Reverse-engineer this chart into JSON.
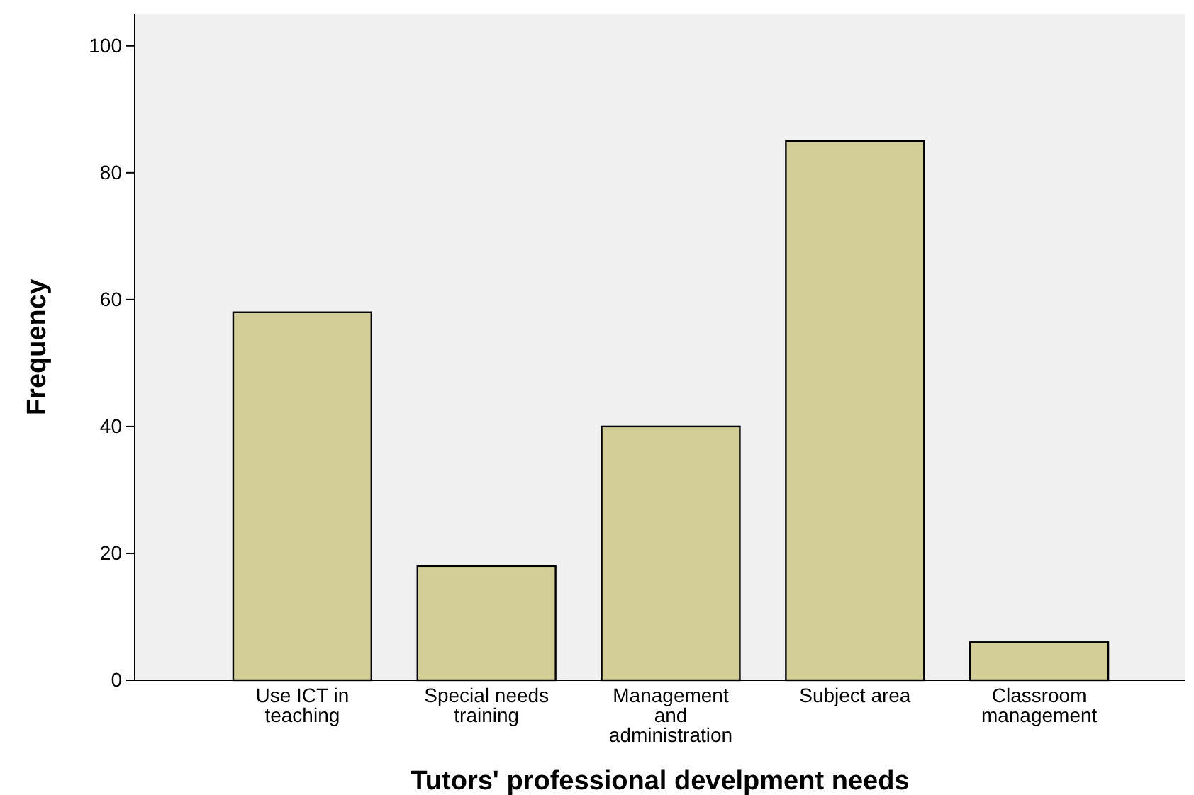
{
  "chart_data": {
    "type": "bar",
    "xlabel": "Tutors' professional develpment needs",
    "ylabel": "Frequency",
    "categories": [
      "Use ICT in teaching",
      "Special needs training",
      "Management and administration",
      "Subject area",
      "Classroom management"
    ],
    "values": [
      58,
      18,
      40,
      85,
      6
    ],
    "color": "#d3ce97",
    "ylim": [
      0,
      105
    ],
    "yticks": [
      0,
      20,
      40,
      60,
      80,
      100
    ],
    "grid": false
  }
}
